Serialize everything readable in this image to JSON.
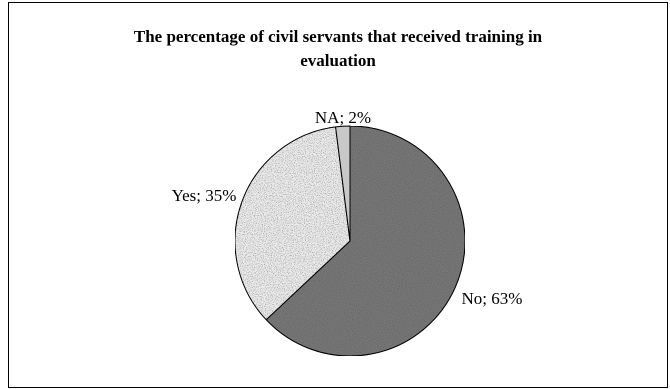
{
  "chart_data": {
    "type": "pie",
    "title": "The percentage of civil servants that received training in evaluation",
    "title_lines": [
      "The percentage of civil servants that received training in",
      "evaluation"
    ],
    "slices": [
      {
        "label": "No",
        "value": 63,
        "text": "No; 63%",
        "color": "#8c8c8c"
      },
      {
        "label": "Yes",
        "value": 35,
        "text": "Yes; 35%",
        "color": "#ececec"
      },
      {
        "label": "NA",
        "value": 2,
        "text": "NA; 2%",
        "color": "#c8c8c8"
      }
    ]
  }
}
